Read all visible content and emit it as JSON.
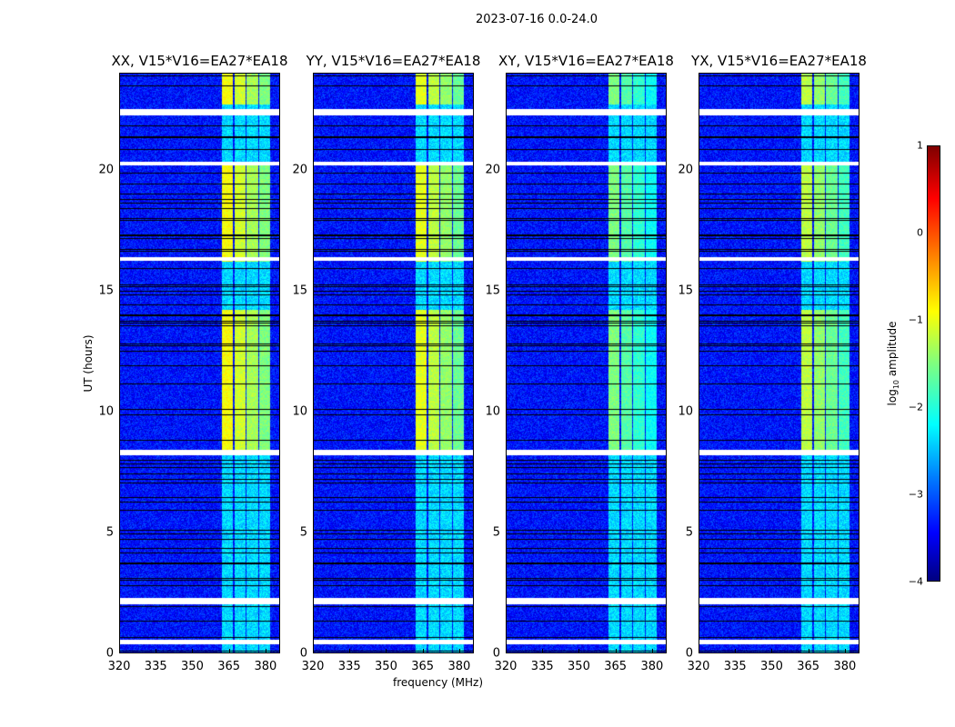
{
  "suptitle": "2023-07-16 0.0-24.0",
  "chart_data": {
    "type": "heatmap",
    "title": "2023-07-16 0.0-24.0",
    "xlabel": "frequency (MHz)",
    "ylabel": "UT (hours)",
    "xlim": [
      320,
      386
    ],
    "ylim": [
      0,
      24
    ],
    "xticks": [
      "320",
      "335",
      "350",
      "365",
      "380"
    ],
    "xtick_values": [
      320,
      335,
      350,
      365,
      380
    ],
    "yticks": [
      "0",
      "5",
      "10",
      "15",
      "20"
    ],
    "ytick_values": [
      0,
      5,
      10,
      15,
      20
    ],
    "panels": [
      {
        "title": "XX, V15*V16=EA27*EA18",
        "band_peak": -0.9
      },
      {
        "title": "YY, V15*V16=EA27*EA18",
        "band_peak": -1.0
      },
      {
        "title": "XY, V15*V16=EA27*EA18",
        "band_peak": -1.5
      },
      {
        "title": "YX, V15*V16=EA27*EA18",
        "band_peak": -1.2
      }
    ],
    "bright_band_mhz": [
      [
        362,
        366.4
      ],
      [
        367,
        371.6
      ],
      [
        372.2,
        376.8
      ],
      [
        377.4,
        381.8
      ]
    ],
    "bright_periods_hours": [
      [
        8.3,
        14.2
      ],
      [
        16.2,
        20.2
      ],
      [
        22.7,
        24
      ]
    ],
    "flagged_hours": [
      [
        0.4,
        0.6
      ],
      [
        2.05,
        2.3
      ],
      [
        8.2,
        8.45
      ],
      [
        16.25,
        16.4
      ],
      [
        20.2,
        20.35
      ],
      [
        22.25,
        22.5
      ]
    ],
    "background_log_amp": -3.3,
    "colorbar": {
      "label": "log10 amplitude",
      "label_main": "log",
      "label_sub": "10",
      "label_rest": " amplitude",
      "range": [
        -4,
        1
      ],
      "ticks": [
        "1",
        "0",
        "−1",
        "−2",
        "−3",
        "−4"
      ],
      "tick_values": [
        1,
        0,
        -1,
        -2,
        -3,
        -4
      ],
      "colormap": "jet"
    }
  }
}
